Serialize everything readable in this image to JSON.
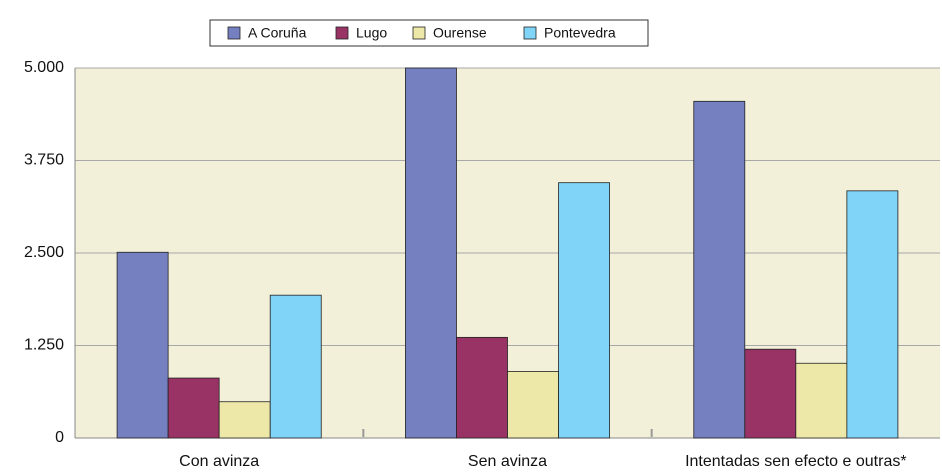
{
  "chart_data": {
    "type": "bar",
    "categories": [
      "Con avinza",
      "Sen avinza",
      "Intentadas sen efecto e outras*"
    ],
    "series": [
      {
        "name": "A Coruña",
        "color": "#7580c0",
        "values": [
          2510,
          5000,
          4550
        ]
      },
      {
        "name": "Lugo",
        "color": "#993366",
        "values": [
          810,
          1360,
          1200
        ]
      },
      {
        "name": "Ourense",
        "color": "#eee8a8",
        "values": [
          490,
          900,
          1010
        ]
      },
      {
        "name": "Pontevedra",
        "color": "#80d4f8",
        "values": [
          1930,
          3450,
          3340
        ]
      }
    ],
    "ylim": [
      0,
      5000
    ],
    "yticks": [
      0,
      {
        "value": 1250,
        "label": "1.250"
      },
      {
        "value": 2500,
        "label": "2.500"
      },
      {
        "value": 3750,
        "label": "3.750"
      },
      {
        "value": 5000,
        "label": "5.000"
      }
    ],
    "grid": true,
    "legend": "top"
  }
}
